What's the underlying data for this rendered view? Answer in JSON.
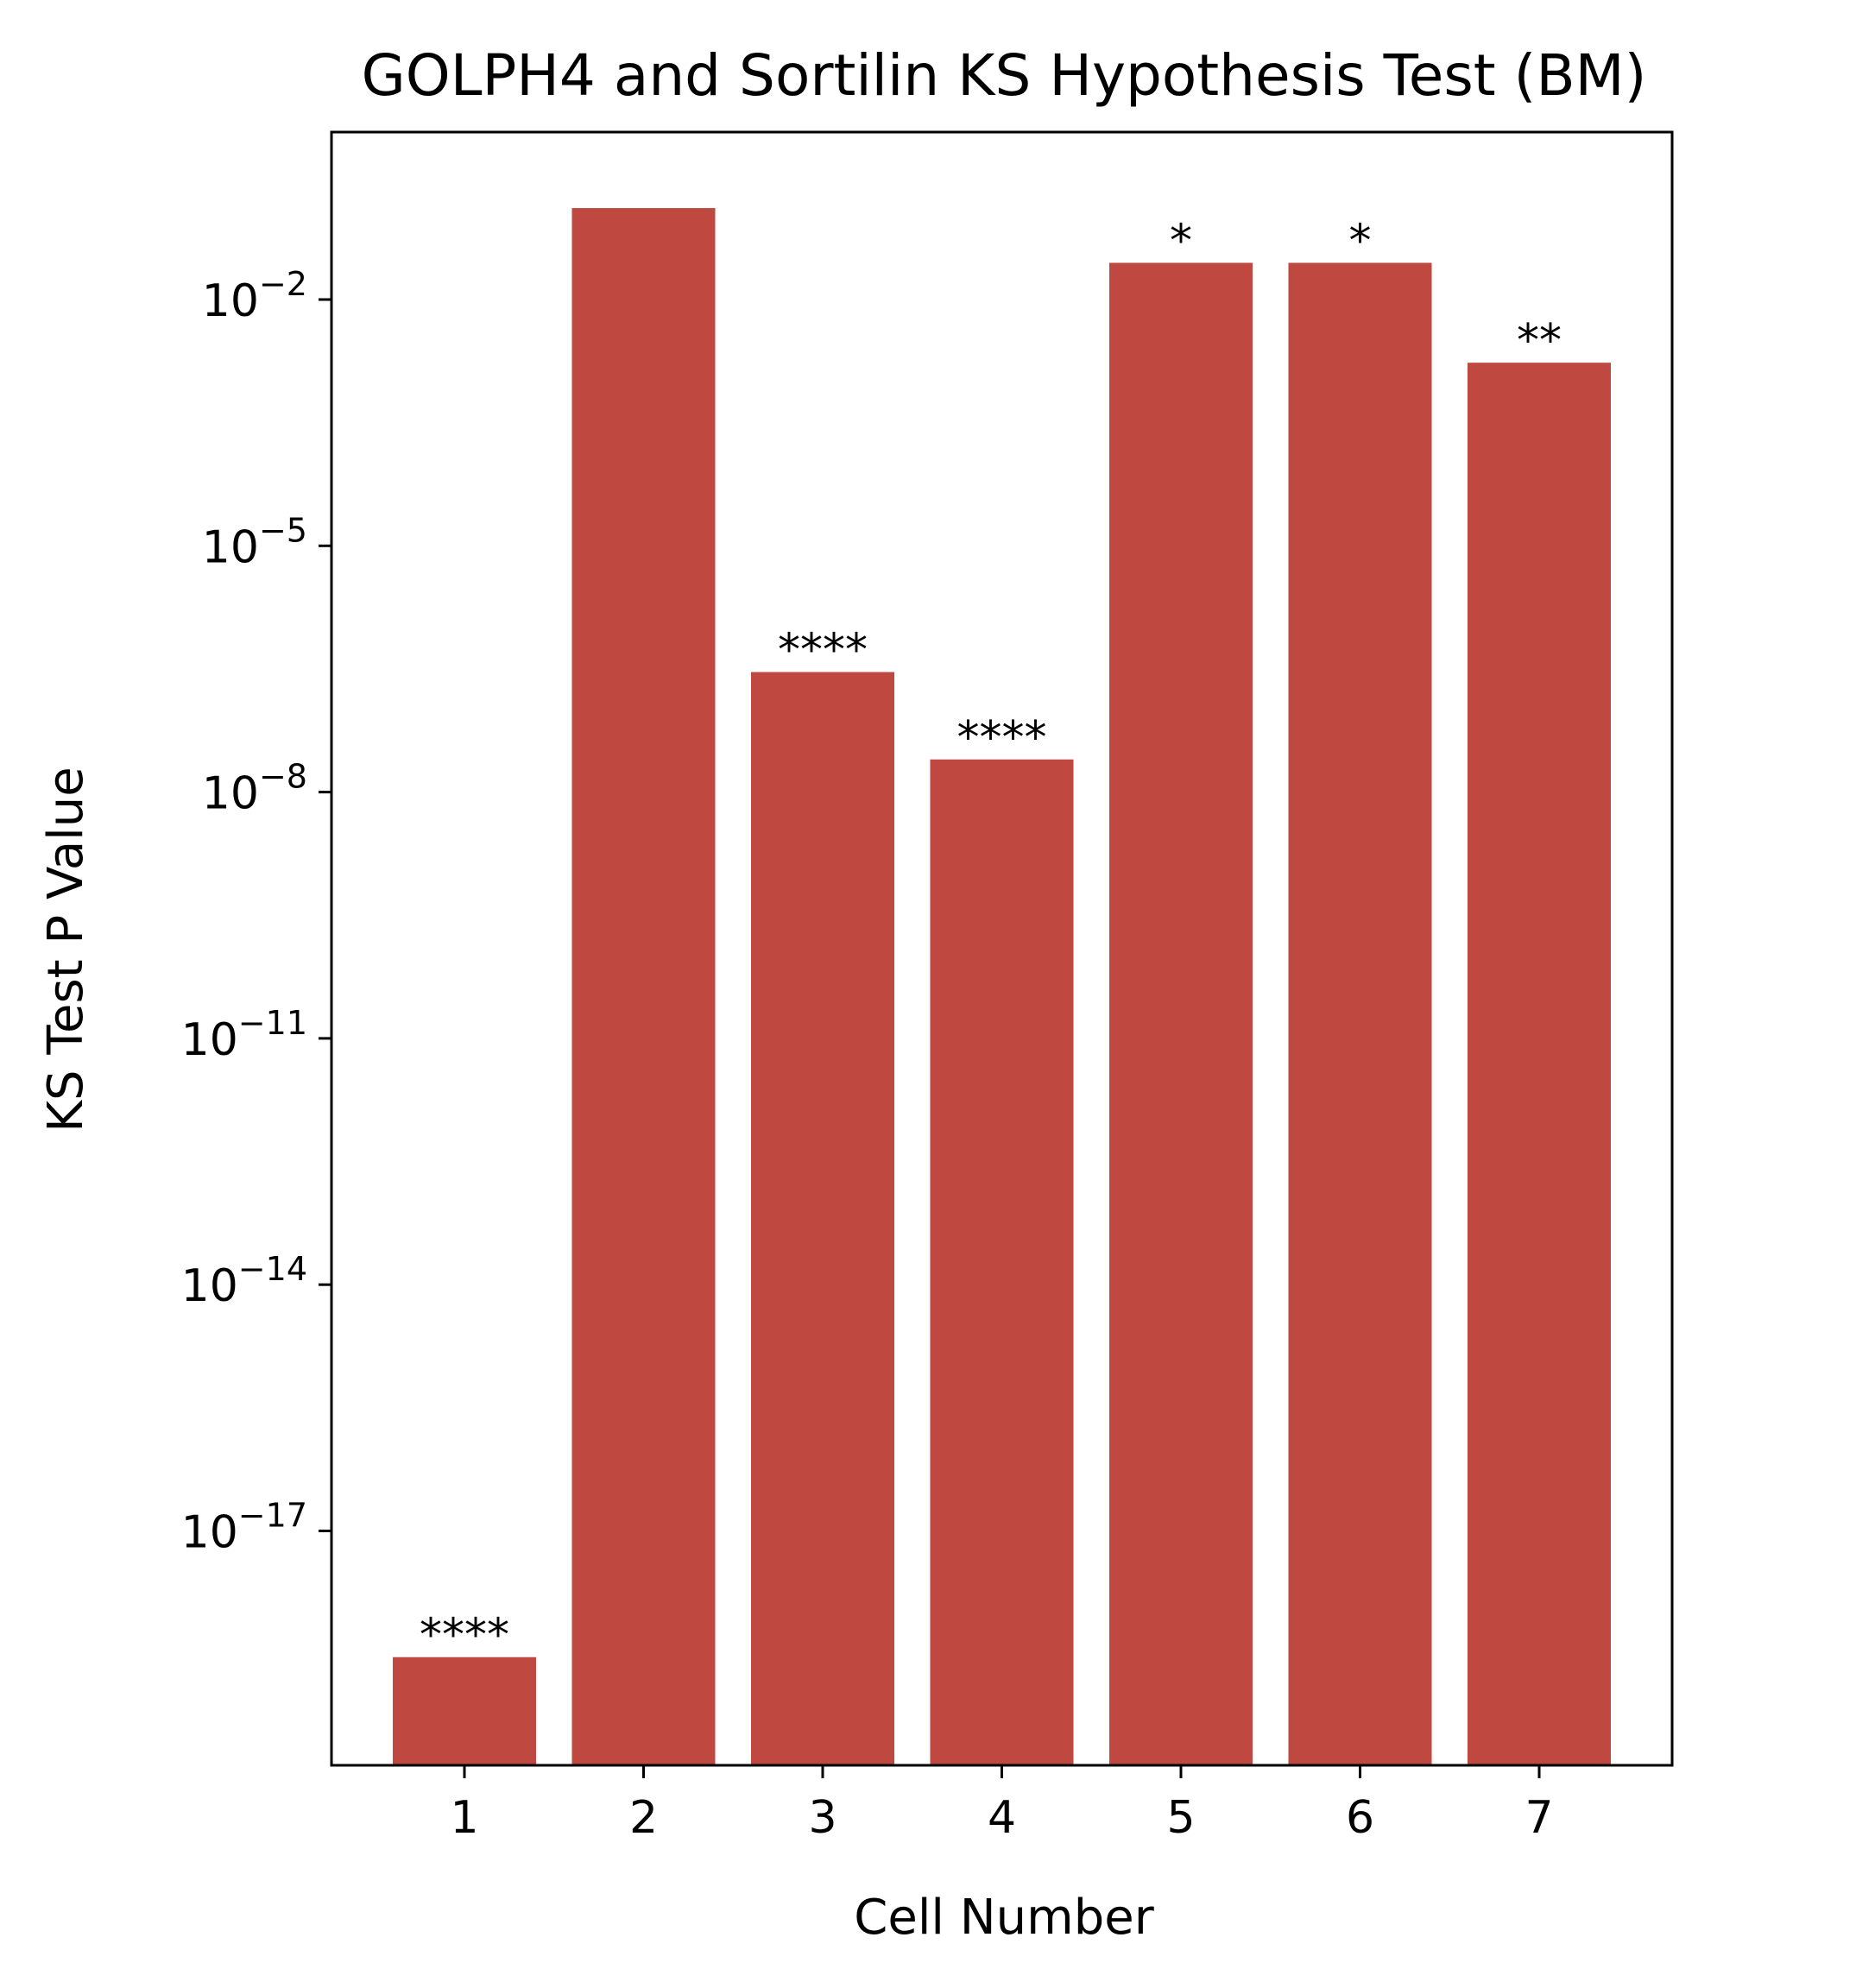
{
  "chart_data": {
    "type": "bar",
    "title": "GOLPH4 and Sortilin KS Hypothesis Test (BM)",
    "xlabel": "Cell Number",
    "ylabel": "KS Test P Value",
    "yscale": "log",
    "ylim": [
      1e-20,
      1.0
    ],
    "categories": [
      "1",
      "2",
      "3",
      "4",
      "5",
      "6",
      "7"
    ],
    "values": [
      2.9e-19,
      0.13,
      2.9e-07,
      2.5e-08,
      0.028,
      0.028,
      0.0017
    ],
    "annotations": [
      "****",
      "",
      "****",
      "****",
      "*",
      "*",
      "**"
    ],
    "yticks": [
      {
        "value": 0.01,
        "base": "10",
        "exp": "−2"
      },
      {
        "value": 1e-05,
        "base": "10",
        "exp": "−5"
      },
      {
        "value": 1e-08,
        "base": "10",
        "exp": "−8"
      },
      {
        "value": 1e-11,
        "base": "10",
        "exp": "−11"
      },
      {
        "value": 1e-14,
        "base": "10",
        "exp": "−14"
      },
      {
        "value": 1e-17,
        "base": "10",
        "exp": "−17"
      }
    ],
    "bar_color": "#bf4840",
    "grid": false,
    "legend": "none"
  }
}
